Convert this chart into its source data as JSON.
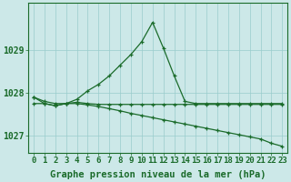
{
  "hours": [
    0,
    1,
    2,
    3,
    4,
    5,
    6,
    7,
    8,
    9,
    10,
    11,
    12,
    13,
    14,
    15,
    16,
    17,
    18,
    19,
    20,
    21,
    22,
    23
  ],
  "line_peak": [
    1027.9,
    1027.75,
    1027.7,
    1027.75,
    1027.85,
    1028.05,
    1028.2,
    1028.4,
    1028.65,
    1028.9,
    1029.2,
    1029.65,
    1029.05,
    1028.4,
    1027.8,
    1027.75,
    1027.75,
    1027.75,
    1027.75,
    1027.75,
    1027.75,
    1027.75,
    1027.75,
    1027.75
  ],
  "line_flat": [
    1027.75,
    1027.75,
    1027.7,
    1027.75,
    1027.78,
    1027.75,
    1027.73,
    1027.73,
    1027.73,
    1027.73,
    1027.73,
    1027.73,
    1027.73,
    1027.73,
    1027.73,
    1027.73,
    1027.73,
    1027.73,
    1027.73,
    1027.73,
    1027.73,
    1027.73,
    1027.73,
    1027.73
  ],
  "line_decline": [
    1027.9,
    1027.8,
    1027.75,
    1027.75,
    1027.75,
    1027.72,
    1027.68,
    1027.63,
    1027.58,
    1027.52,
    1027.47,
    1027.42,
    1027.37,
    1027.32,
    1027.27,
    1027.22,
    1027.17,
    1027.12,
    1027.07,
    1027.02,
    1026.97,
    1026.92,
    1026.82,
    1026.75
  ],
  "ylim": [
    1026.6,
    1030.1
  ],
  "yticks": [
    1027,
    1028,
    1029
  ],
  "line_color": "#1a6b2a",
  "bg_color": "#cce8e8",
  "grid_color": "#99cccc",
  "xlabel": "Graphe pression niveau de la mer (hPa)",
  "xlabel_fontsize": 7.5,
  "tick_fontsize": 6.5
}
